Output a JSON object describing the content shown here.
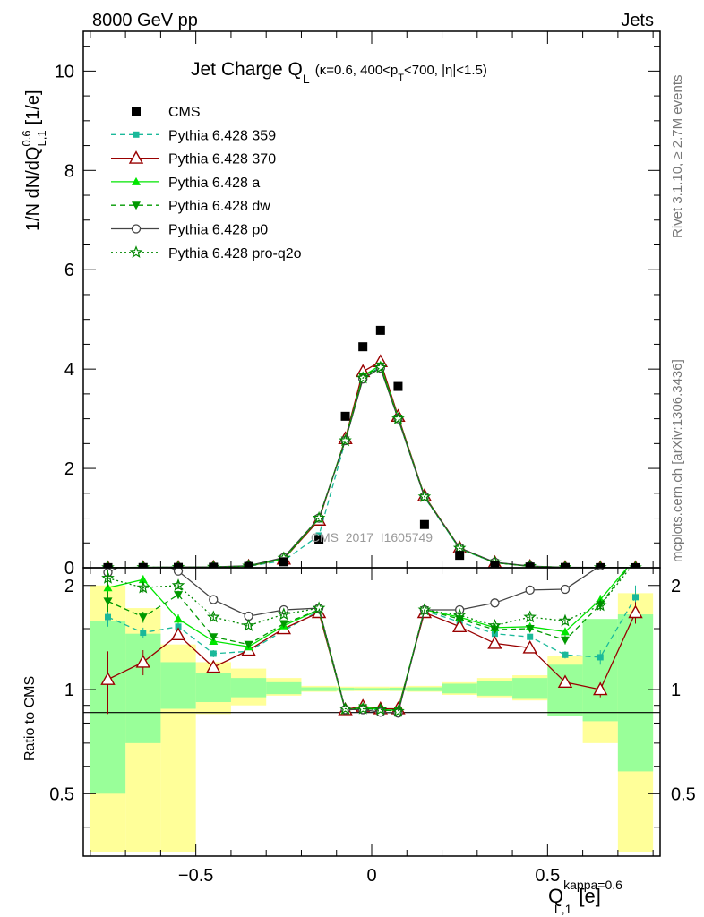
{
  "header": {
    "left": "8000 GeV pp",
    "right": "Jets"
  },
  "side_labels": {
    "rivet": "Rivet 3.1.10, ≥ 2.7M events",
    "mcplots": "mcplots.cern.ch [arXiv:1306.3436]"
  },
  "chart_data": {
    "type": "scatter",
    "title": "Jet Charge Q",
    "title_sub": "L",
    "title_cuts": "(κ=0.6, 400<p",
    "title_cuts_sub": "T",
    "title_cuts_tail": "<700, |η|<1.5)",
    "watermark": "CMS_2017_I1605749",
    "xlabel": "Q",
    "xlabel_sup": "kappa=0.6",
    "xlabel_sub": "L,1",
    "xlabel_unit": "[e]",
    "ylabel": "1/N dN/dQ",
    "ylabel_sup": "0.6",
    "ylabel_sub": "L,1",
    "ylabel_unit": "[1/e]",
    "ratio_ylabel": "Ratio to CMS",
    "xlim": [
      -0.82,
      0.82
    ],
    "ylim": [
      0,
      10.8
    ],
    "ratio_ylim": [
      0.33,
      2.25
    ],
    "x_ticks": [
      "−0.5",
      "0",
      "0.5"
    ],
    "x_tick_values": [
      -0.5,
      0,
      0.5
    ],
    "y_ticks": [
      "0",
      "2",
      "4",
      "6",
      "8",
      "10"
    ],
    "y_tick_values": [
      0,
      2,
      4,
      6,
      8,
      10
    ],
    "ratio_ticks": [
      "0.5",
      "1",
      "2"
    ],
    "ratio_tick_values": [
      0.5,
      1,
      2
    ],
    "x": [
      -0.75,
      -0.65,
      -0.55,
      -0.45,
      -0.35,
      -0.25,
      -0.15,
      -0.075,
      -0.025,
      0.025,
      0.075,
      0.15,
      0.25,
      0.35,
      0.45,
      0.55,
      0.65,
      0.75
    ],
    "bin_edges": [
      -0.8,
      -0.7,
      -0.6,
      -0.5,
      -0.4,
      -0.3,
      -0.2,
      -0.1,
      -0.05,
      0,
      0.05,
      0.1,
      0.2,
      0.3,
      0.4,
      0.5,
      0.6,
      0.7,
      0.8
    ],
    "data": {
      "name": "CMS",
      "values": [
        0.002,
        0.004,
        0.006,
        0.01,
        0.025,
        0.12,
        0.57,
        3.05,
        4.45,
        4.78,
        3.65,
        0.87,
        0.25,
        0.055,
        0.015,
        0.005,
        0.002,
        0.001
      ]
    },
    "band_stat": [
      [
        0.5,
        1.58
      ],
      [
        0.7,
        1.45
      ],
      [
        0.88,
        1.2
      ],
      [
        0.92,
        1.12
      ],
      [
        0.95,
        1.08
      ],
      [
        0.97,
        1.05
      ],
      [
        0.99,
        1.015
      ],
      [
        0.993,
        1.012
      ],
      [
        0.994,
        1.01
      ],
      [
        0.994,
        1.01
      ],
      [
        0.993,
        1.012
      ],
      [
        0.99,
        1.015
      ],
      [
        0.975,
        1.04
      ],
      [
        0.96,
        1.06
      ],
      [
        0.94,
        1.08
      ],
      [
        0.84,
        1.18
      ],
      [
        0.81,
        1.6
      ],
      [
        0.58,
        1.65
      ]
    ],
    "band_total": [
      [
        0.34,
        2.0
      ],
      [
        0.34,
        1.72
      ],
      [
        0.34,
        1.35
      ],
      [
        0.85,
        1.2
      ],
      [
        0.9,
        1.15
      ],
      [
        0.96,
        1.08
      ],
      [
        0.985,
        1.025
      ],
      [
        0.99,
        1.02
      ],
      [
        0.99,
        1.02
      ],
      [
        0.99,
        1.02
      ],
      [
        0.99,
        1.02
      ],
      [
        0.985,
        1.025
      ],
      [
        0.965,
        1.05
      ],
      [
        0.95,
        1.08
      ],
      [
        0.93,
        1.1
      ],
      [
        0.84,
        1.25
      ],
      [
        0.7,
        1.5
      ],
      [
        0.34,
        1.9
      ]
    ],
    "series": [
      {
        "name": "Pythia 6.428 359",
        "color": "#1ab99a",
        "dash": "6,4",
        "marker": "square",
        "values": [
          0.0031,
          0.0058,
          0.0076,
          0.0123,
          0.0307,
          0.14,
          0.65,
          2.55,
          3.82,
          4.05,
          3.0,
          1.42,
          0.38,
          0.1,
          0.0285,
          0.0069,
          0.0026,
          0.0018
        ],
        "ratio": [
          1.62,
          1.46,
          1.52,
          1.27,
          1.29,
          1.48,
          1.69,
          0.87,
          0.885,
          0.87,
          0.875,
          1.69,
          1.57,
          1.45,
          1.42,
          1.26,
          1.24,
          1.85
        ],
        "ratio_err": [
          0.1,
          0.05,
          0.04,
          0.03,
          0.02,
          0.02,
          0.01,
          0.01,
          0.01,
          0.01,
          0.01,
          0.01,
          0.02,
          0.02,
          0.03,
          0.03,
          0.06,
          0.15
        ]
      },
      {
        "name": "Pythia 6.428 370",
        "color": "#990000",
        "dash": "",
        "marker": "triangle-open",
        "values": [
          0.0022,
          0.0048,
          0.0072,
          0.0118,
          0.0318,
          0.175,
          0.96,
          2.6,
          3.95,
          4.15,
          3.05,
          1.45,
          0.4,
          0.104,
          0.029,
          0.0054,
          0.0021,
          0.0017
        ],
        "ratio": [
          1.07,
          1.2,
          1.44,
          1.16,
          1.3,
          1.5,
          1.67,
          0.875,
          0.895,
          0.88,
          0.88,
          1.67,
          1.52,
          1.36,
          1.32,
          1.05,
          1.0,
          1.67
        ],
        "ratio_err": [
          0.22,
          0.1,
          0.05,
          0.03,
          0.02,
          0.02,
          0.01,
          0.01,
          0.01,
          0.01,
          0.01,
          0.01,
          0.02,
          0.02,
          0.03,
          0.03,
          0.05,
          0.12
        ]
      },
      {
        "name": "Pythia 6.428 a",
        "color": "#00e600",
        "dash": "",
        "marker": "triangle",
        "values": [
          0.0039,
          0.0083,
          0.0094,
          0.0131,
          0.0335,
          0.182,
          0.99,
          2.58,
          3.86,
          4.08,
          3.02,
          1.44,
          0.39,
          0.102,
          0.028,
          0.0075,
          0.0038,
          0.0028
        ],
        "ratio": [
          1.97,
          2.08,
          1.6,
          1.38,
          1.33,
          1.53,
          1.7,
          0.87,
          0.89,
          0.875,
          0.87,
          1.7,
          1.62,
          1.51,
          1.52,
          1.47,
          1.82,
          2.4
        ],
        "ratio_err": [
          0.12,
          0.06,
          0.05,
          0.03,
          0.02,
          0.02,
          0.01,
          0.01,
          0.01,
          0.01,
          0.01,
          0.01,
          0.02,
          0.02,
          0.03,
          0.04,
          0.06,
          0.1
        ]
      },
      {
        "name": "Pythia 6.428 dw",
        "color": "#009900",
        "dash": "6,4",
        "marker": "triangle-down",
        "values": [
          0.0036,
          0.007,
          0.0088,
          0.0129,
          0.0335,
          0.185,
          0.99,
          2.57,
          3.84,
          4.06,
          3.01,
          1.43,
          0.39,
          0.101,
          0.028,
          0.0075,
          0.0035,
          0.0024
        ],
        "ratio": [
          1.8,
          1.62,
          1.88,
          1.42,
          1.35,
          1.55,
          1.7,
          0.87,
          0.885,
          0.87,
          0.87,
          1.7,
          1.6,
          1.49,
          1.5,
          1.39,
          1.76,
          2.4
        ],
        "ratio_err": [
          0.12,
          0.06,
          0.05,
          0.03,
          0.02,
          0.02,
          0.01,
          0.01,
          0.01,
          0.01,
          0.01,
          0.01,
          0.02,
          0.02,
          0.03,
          0.04,
          0.06,
          0.1
        ]
      },
      {
        "name": "Pythia 6.428 p0",
        "color": "#444444",
        "dash": "",
        "marker": "circle-open",
        "values": [
          0.0044,
          0.0098,
          0.013,
          0.0177,
          0.039,
          0.205,
          1.0,
          2.56,
          3.8,
          4.02,
          3.0,
          1.43,
          0.4,
          0.11,
          0.034,
          0.0099,
          0.0048,
          0.0033
        ],
        "ratio": [
          2.18,
          2.45,
          2.2,
          1.82,
          1.63,
          1.7,
          1.72,
          0.875,
          0.875,
          0.86,
          0.855,
          1.7,
          1.7,
          1.78,
          1.94,
          1.95,
          2.28,
          2.45
        ],
        "ratio_err": [
          0.12,
          0.06,
          0.05,
          0.03,
          0.02,
          0.02,
          0.01,
          0.01,
          0.01,
          0.01,
          0.01,
          0.01,
          0.02,
          0.02,
          0.03,
          0.04,
          0.06,
          0.1
        ]
      },
      {
        "name": "Pythia 6.428 pro-q2o",
        "color": "#008800",
        "dash": "2,3",
        "marker": "star",
        "values": [
          0.0042,
          0.0079,
          0.0117,
          0.0145,
          0.0365,
          0.195,
          1.0,
          2.56,
          3.82,
          4.03,
          3.0,
          1.43,
          0.395,
          0.105,
          0.0305,
          0.008,
          0.0037,
          0.0032
        ],
        "ratio": [
          2.1,
          1.97,
          2.0,
          1.62,
          1.53,
          1.65,
          1.72,
          0.88,
          0.88,
          0.875,
          0.865,
          1.7,
          1.64,
          1.53,
          1.62,
          1.58,
          1.75,
          2.35
        ],
        "ratio_err": [
          0.12,
          0.06,
          0.05,
          0.03,
          0.02,
          0.02,
          0.01,
          0.01,
          0.01,
          0.01,
          0.01,
          0.01,
          0.02,
          0.02,
          0.03,
          0.04,
          0.06,
          0.1
        ]
      }
    ],
    "legend_position": "top-left",
    "colors": {
      "band_stat": "#99ff99",
      "band_total": "#ffff99",
      "data": "#000000"
    }
  }
}
